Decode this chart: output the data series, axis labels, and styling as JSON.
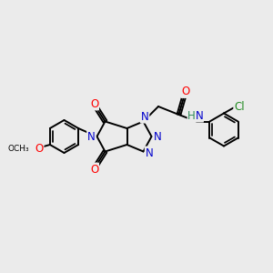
{
  "background_color": "#ebebeb",
  "bond_color": "#000000",
  "bond_width": 1.4,
  "atom_colors": {
    "N": "#0000cc",
    "O": "#ff0000",
    "Cl": "#228B22",
    "H_N": "#2e8b57",
    "C": "#000000"
  },
  "font_size_atoms": 8.5,
  "font_size_small": 7.5
}
